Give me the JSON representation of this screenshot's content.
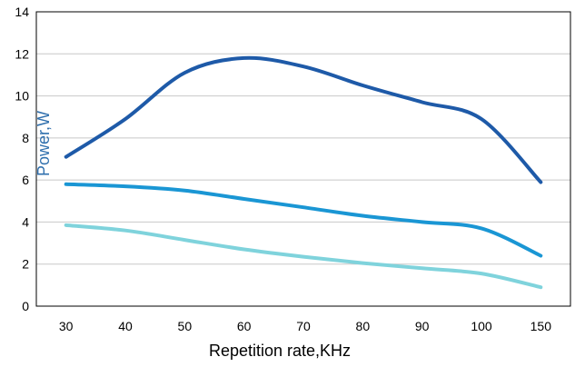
{
  "chart_data": {
    "type": "line",
    "title": "",
    "xlabel": "Repetition rate,KHz",
    "ylabel": "Power,W",
    "x_categories": [
      "30",
      "40",
      "50",
      "60",
      "70",
      "80",
      "90",
      "100",
      "150"
    ],
    "ylim": [
      0,
      14
    ],
    "yticks": [
      "0",
      "2",
      "4",
      "6",
      "8",
      "10",
      "12",
      "14"
    ],
    "grid": "horizontal",
    "legend": "none",
    "series": [
      {
        "color": "#1e5aa8",
        "values": [
          7.1,
          8.9,
          11.1,
          11.8,
          11.4,
          10.5,
          9.7,
          8.9,
          5.9
        ]
      },
      {
        "color": "#1a96d4",
        "values": [
          5.8,
          5.7,
          5.5,
          5.1,
          4.7,
          4.3,
          4.0,
          3.7,
          2.4
        ]
      },
      {
        "color": "#7fd3dc",
        "values": [
          3.85,
          3.6,
          3.15,
          2.7,
          2.35,
          2.05,
          1.8,
          1.55,
          0.9
        ]
      }
    ]
  }
}
